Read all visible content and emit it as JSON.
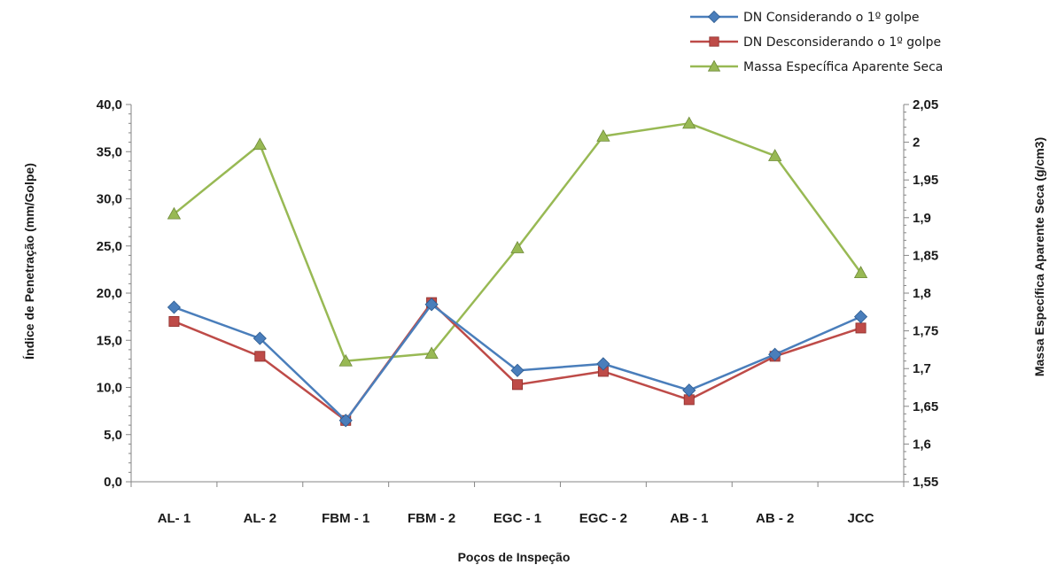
{
  "chart_data": {
    "type": "line",
    "categories": [
      "AL- 1",
      "AL- 2",
      "FBM - 1",
      "FBM - 2",
      "EGC - 1",
      "EGC - 2",
      "AB - 1",
      "AB - 2",
      "JCC"
    ],
    "series": [
      {
        "name": "DN Considerando o 1º golpe",
        "axis": "left",
        "marker": "diamond",
        "color": "#4a7ebb",
        "values": [
          18.5,
          15.2,
          6.5,
          18.8,
          11.8,
          12.5,
          9.7,
          13.5,
          17.5
        ]
      },
      {
        "name": "DN Desconsiderando o 1º golpe",
        "axis": "left",
        "marker": "square",
        "color": "#be4b48",
        "values": [
          17.0,
          13.3,
          6.5,
          19.0,
          10.3,
          11.7,
          8.7,
          13.3,
          16.3
        ]
      },
      {
        "name": "Massa Específica Aparente Seca",
        "axis": "right",
        "marker": "triangle",
        "color": "#98b954",
        "values": [
          1.905,
          1.997,
          1.71,
          1.72,
          1.86,
          2.008,
          2.025,
          1.982,
          1.827
        ]
      }
    ],
    "xlabel": "Poços de Inspeção",
    "ylabel": "Índice de Penetração  (mm/Golpe)",
    "y2label": "Massa  Específica  Aparente Seca  (g/cm3)",
    "ylim": [
      0,
      40
    ],
    "y2lim": [
      1.55,
      2.05
    ],
    "yticks": [
      "0,0",
      "5,0",
      "10,0",
      "15,0",
      "20,0",
      "25,0",
      "30,0",
      "35,0",
      "40,0"
    ],
    "y2ticks": [
      "1,55",
      "1,6",
      "1,65",
      "1,7",
      "1,75",
      "1,8",
      "1,85",
      "1,9",
      "1,95",
      "2",
      "2,05"
    ],
    "grid": false,
    "legend_position": "top-right"
  }
}
